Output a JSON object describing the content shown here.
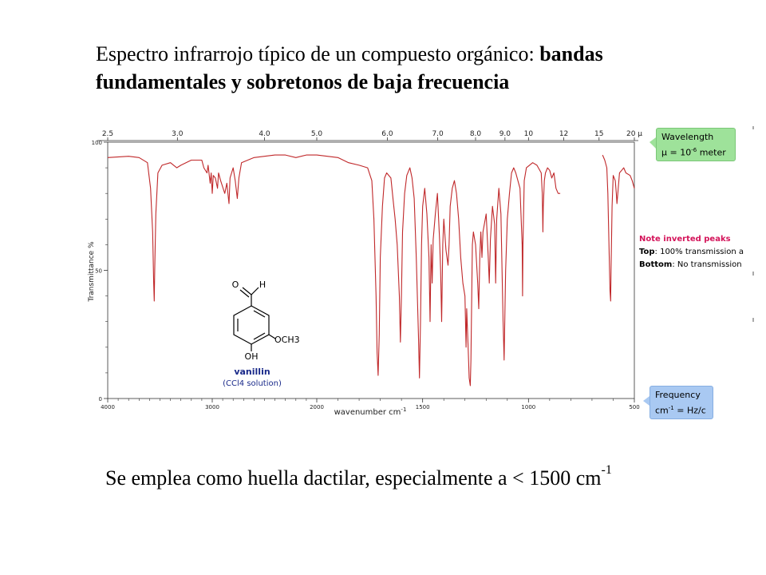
{
  "title": {
    "normal": "Espectro infrarrojo típico de un compuesto orgánico: ",
    "bold": "bandas fundamentales y sobretonos de baja frecuencia"
  },
  "caption": {
    "text": "Se emplea como huella dactilar, especialmente a < 1500 cm",
    "sup": "-1"
  },
  "chart_data": {
    "type": "line",
    "xlabel": "wavenumber cm",
    "xlabel_sup": "-1",
    "ylabel": "Transmittance %",
    "xlim": [
      4000,
      500
    ],
    "ylim": [
      0,
      100
    ],
    "x_ticks": [
      "4000",
      "3000",
      "2000",
      "1500",
      "1000",
      "500"
    ],
    "y_ticks": [
      "100",
      "50",
      "0"
    ],
    "top_axis_label": "Wavelength",
    "top_ticks": [
      {
        "label": "2.5",
        "um": 2.5
      },
      {
        "label": "3.0",
        "um": 3.0
      },
      {
        "label": "4.0",
        "um": 4.0
      },
      {
        "label": "5.0",
        "um": 5.0
      },
      {
        "label": "6.0",
        "um": 6.0
      },
      {
        "label": "7.0",
        "um": 7.0
      },
      {
        "label": "8.0",
        "um": 8.0
      },
      {
        "label": "9.0",
        "um": 9.0
      },
      {
        "label": "10",
        "um": 10
      },
      {
        "label": "12",
        "um": 12
      },
      {
        "label": "15",
        "um": 15
      },
      {
        "label": "20 µ",
        "um": 20
      }
    ],
    "line_color": "#c0282a",
    "series": [
      {
        "points": [
          [
            4000,
            94
          ],
          [
            3800,
            94.5
          ],
          [
            3700,
            94
          ],
          [
            3620,
            92
          ],
          [
            3590,
            82
          ],
          [
            3570,
            65
          ],
          [
            3560,
            45
          ],
          [
            3555,
            38
          ],
          [
            3550,
            50
          ],
          [
            3540,
            72
          ],
          [
            3520,
            88
          ],
          [
            3480,
            91
          ],
          [
            3400,
            92
          ],
          [
            3340,
            90
          ],
          [
            3300,
            91
          ],
          [
            3200,
            93
          ],
          [
            3100,
            93
          ],
          [
            3080,
            90
          ],
          [
            3050,
            88
          ],
          [
            3040,
            91
          ],
          [
            3020,
            84
          ],
          [
            3010,
            88
          ],
          [
            3000,
            80
          ],
          [
            2990,
            87
          ],
          [
            2970,
            86
          ],
          [
            2950,
            82
          ],
          [
            2940,
            88
          ],
          [
            2920,
            85
          ],
          [
            2880,
            80
          ],
          [
            2860,
            84
          ],
          [
            2840,
            76
          ],
          [
            2830,
            86
          ],
          [
            2800,
            90
          ],
          [
            2780,
            85
          ],
          [
            2760,
            78
          ],
          [
            2745,
            86
          ],
          [
            2720,
            92
          ],
          [
            2600,
            94
          ],
          [
            2400,
            95
          ],
          [
            2300,
            95
          ],
          [
            2200,
            94
          ],
          [
            2100,
            95
          ],
          [
            2000,
            95
          ],
          [
            1900,
            94
          ],
          [
            1850,
            92
          ],
          [
            1800,
            91
          ],
          [
            1760,
            90
          ],
          [
            1740,
            85
          ],
          [
            1730,
            70
          ],
          [
            1720,
            40
          ],
          [
            1715,
            18
          ],
          [
            1710,
            9
          ],
          [
            1705,
            25
          ],
          [
            1700,
            55
          ],
          [
            1690,
            75
          ],
          [
            1680,
            86
          ],
          [
            1670,
            88
          ],
          [
            1650,
            86
          ],
          [
            1640,
            78
          ],
          [
            1630,
            70
          ],
          [
            1620,
            60
          ],
          [
            1610,
            40
          ],
          [
            1605,
            22
          ],
          [
            1600,
            40
          ],
          [
            1595,
            65
          ],
          [
            1585,
            80
          ],
          [
            1575,
            87
          ],
          [
            1560,
            90
          ],
          [
            1550,
            86
          ],
          [
            1540,
            78
          ],
          [
            1530,
            55
          ],
          [
            1520,
            25
          ],
          [
            1515,
            8
          ],
          [
            1510,
            30
          ],
          [
            1505,
            60
          ],
          [
            1500,
            75
          ],
          [
            1490,
            82
          ],
          [
            1480,
            72
          ],
          [
            1470,
            55
          ],
          [
            1465,
            30
          ],
          [
            1460,
            60
          ],
          [
            1455,
            45
          ],
          [
            1450,
            62
          ],
          [
            1440,
            72
          ],
          [
            1430,
            80
          ],
          [
            1420,
            62
          ],
          [
            1415,
            50
          ],
          [
            1410,
            30
          ],
          [
            1405,
            60
          ],
          [
            1400,
            70
          ],
          [
            1390,
            58
          ],
          [
            1380,
            52
          ],
          [
            1375,
            60
          ],
          [
            1370,
            75
          ],
          [
            1360,
            82
          ],
          [
            1350,
            85
          ],
          [
            1340,
            80
          ],
          [
            1330,
            70
          ],
          [
            1320,
            55
          ],
          [
            1310,
            45
          ],
          [
            1300,
            40
          ],
          [
            1295,
            20
          ],
          [
            1292,
            35
          ],
          [
            1285,
            20
          ],
          [
            1280,
            8
          ],
          [
            1275,
            5
          ],
          [
            1272,
            15
          ],
          [
            1268,
            40
          ],
          [
            1265,
            60
          ],
          [
            1260,
            65
          ],
          [
            1250,
            60
          ],
          [
            1240,
            45
          ],
          [
            1235,
            35
          ],
          [
            1230,
            55
          ],
          [
            1225,
            65
          ],
          [
            1220,
            55
          ],
          [
            1215,
            65
          ],
          [
            1200,
            72
          ],
          [
            1190,
            55
          ],
          [
            1185,
            45
          ],
          [
            1180,
            62
          ],
          [
            1170,
            75
          ],
          [
            1160,
            68
          ],
          [
            1155,
            45
          ],
          [
            1150,
            70
          ],
          [
            1140,
            82
          ],
          [
            1130,
            72
          ],
          [
            1125,
            50
          ],
          [
            1120,
            30
          ],
          [
            1115,
            15
          ],
          [
            1112,
            30
          ],
          [
            1108,
            50
          ],
          [
            1100,
            70
          ],
          [
            1090,
            80
          ],
          [
            1080,
            88
          ],
          [
            1070,
            90
          ],
          [
            1060,
            88
          ],
          [
            1040,
            82
          ],
          [
            1030,
            60
          ],
          [
            1028,
            40
          ],
          [
            1026,
            60
          ],
          [
            1020,
            85
          ],
          [
            1010,
            90
          ],
          [
            980,
            92
          ],
          [
            960,
            91
          ],
          [
            940,
            88
          ],
          [
            935,
            80
          ],
          [
            932,
            65
          ],
          [
            930,
            75
          ],
          [
            925,
            85
          ],
          [
            920,
            88
          ],
          [
            910,
            90
          ],
          [
            900,
            89
          ],
          [
            890,
            86
          ],
          [
            880,
            88
          ],
          [
            870,
            82
          ],
          [
            860,
            80
          ],
          [
            850,
            80
          ]
        ]
      },
      {
        "points": [
          [
            650,
            95
          ],
          [
            640,
            93
          ],
          [
            630,
            90
          ],
          [
            625,
            80
          ],
          [
            620,
            60
          ],
          [
            615,
            42
          ],
          [
            612,
            38
          ],
          [
            610,
            50
          ],
          [
            605,
            75
          ],
          [
            600,
            87
          ],
          [
            590,
            85
          ],
          [
            585,
            80
          ],
          [
            582,
            76
          ],
          [
            578,
            80
          ],
          [
            570,
            88
          ],
          [
            560,
            89
          ],
          [
            550,
            90
          ],
          [
            540,
            88
          ],
          [
            520,
            87
          ],
          [
            510,
            85
          ],
          [
            500,
            82
          ]
        ]
      }
    ],
    "molecule_name": "vanillin",
    "molecule_note": "(CCl4 solution)",
    "atom_labels": {
      "carbonyl_O": "O",
      "aldehyde_H": "H",
      "methoxy": "OCH3",
      "hydroxyl": "OH"
    },
    "annotations": {
      "wavelength_box": {
        "title": "Wavelength",
        "text": "µ = 10",
        "sup": "-6",
        "text_after": " meter"
      },
      "frequency_box": {
        "title": "Frequency",
        "text": "cm",
        "sup": "-1",
        "text_after": " = Hz/c"
      },
      "note_title": "Note inverted peaks",
      "note_top_label": "Top",
      "note_top": ": 100% transmission a",
      "note_bottom_label": "Bottom",
      "note_bottom": ": No transmission"
    }
  }
}
